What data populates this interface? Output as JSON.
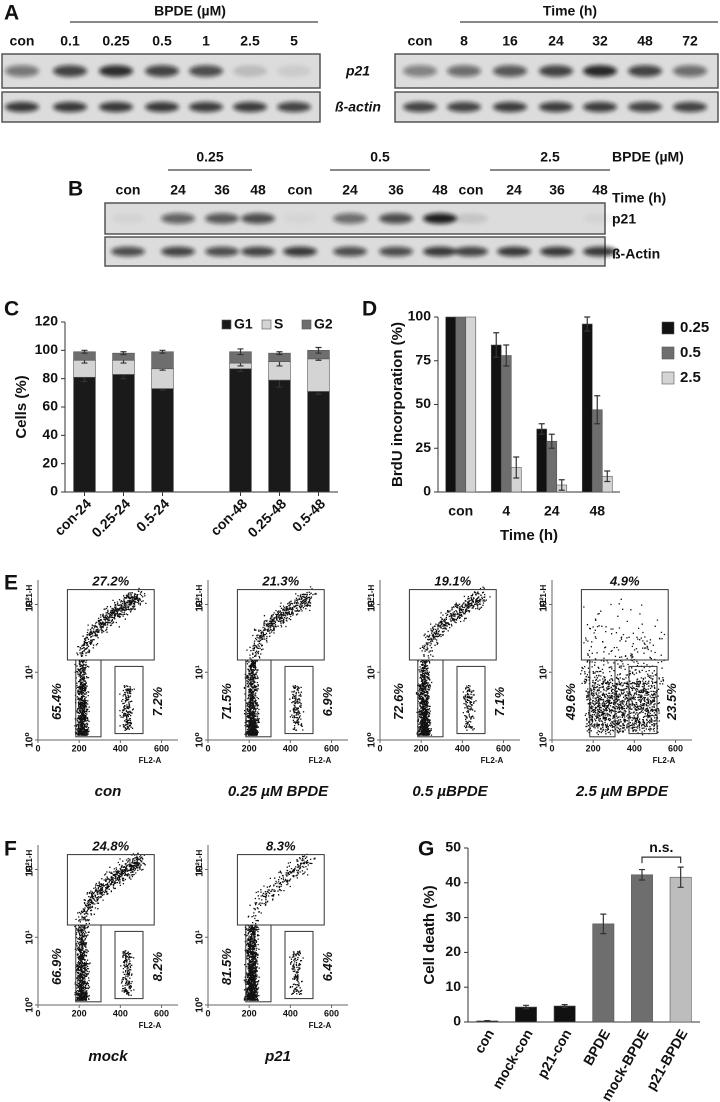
{
  "panel_labels": [
    "A",
    "B",
    "C",
    "D",
    "E",
    "F",
    "G"
  ],
  "blot_a": {
    "dose": {
      "header": "BPDE (µM)",
      "lanes": [
        "con",
        "0.1",
        "0.25",
        "0.5",
        "1",
        "2.5",
        "5"
      ]
    },
    "time": {
      "header": "Time (h)",
      "lanes": [
        "con",
        "8",
        "16",
        "24",
        "32",
        "48",
        "72"
      ]
    },
    "rows": [
      "p21",
      "ß-actin"
    ]
  },
  "blot_b": {
    "groups": [
      "0.25",
      "0.5",
      "2.5"
    ],
    "dose_label": "BPDE (µM)",
    "time_label": "Time (h)",
    "lanes": [
      "con",
      "24",
      "36",
      "48",
      "con",
      "24",
      "36",
      "48",
      "con",
      "24",
      "36",
      "48"
    ],
    "rows": [
      "p21",
      "ß-Actin"
    ]
  },
  "chart_data": [
    {
      "type": "stacked_bar",
      "ylabel": "Cells (%)",
      "categories": [
        "con-24",
        "0.25-24",
        "0.5-24",
        null,
        "con-48",
        "0.25-48",
        "0.5-48"
      ],
      "series": [
        {
          "name": "G1",
          "color": "#1a1a1a",
          "values": [
            81,
            83,
            73,
            null,
            87,
            79,
            71
          ],
          "errors": [
            3,
            3,
            1,
            null,
            2,
            5,
            2
          ]
        },
        {
          "name": "S",
          "color": "#d4d4d4",
          "values": [
            12,
            10,
            14,
            null,
            4,
            13,
            23
          ],
          "errors": [
            2,
            2,
            1,
            null,
            2,
            3,
            1
          ]
        },
        {
          "name": "G2",
          "color": "#6e6e6e",
          "values": [
            6,
            5,
            12,
            null,
            8,
            6,
            6
          ],
          "errors": [
            1,
            1,
            1,
            null,
            2,
            1,
            2
          ]
        }
      ],
      "ylim": [
        0,
        120
      ],
      "yticks": [
        0,
        20,
        40,
        60,
        80,
        100,
        120
      ],
      "legend": "top"
    },
    {
      "type": "grouped_bar",
      "xlabel": "Time (h)",
      "ylabel": "BrdU incorporation (%)",
      "categories": [
        "con",
        "4",
        "24",
        "48"
      ],
      "series": [
        {
          "name": "0.25",
          "color": "#111111",
          "values": [
            100,
            84,
            36,
            96
          ],
          "errors": [
            null,
            7,
            3,
            4
          ]
        },
        {
          "name": "0.5",
          "color": "#6e6e6e",
          "values": [
            100,
            78,
            29,
            47
          ],
          "errors": [
            null,
            6,
            4,
            8
          ]
        },
        {
          "name": "2.5",
          "color": "#d4d4d4",
          "values": [
            100,
            14,
            4,
            9
          ],
          "errors": [
            null,
            6,
            3,
            3
          ]
        }
      ],
      "ylim": [
        0,
        100
      ],
      "yticks": [
        0,
        25,
        50,
        75,
        100
      ],
      "legend": "right"
    },
    {
      "type": "bar",
      "ylabel": "Cell death (%)",
      "categories": [
        "con",
        "mock-con",
        "p21-con",
        "BPDE",
        "mock-BPDE",
        "p21-BPDE"
      ],
      "values": [
        0.3,
        4.3,
        4.6,
        28.2,
        42.3,
        41.6
      ],
      "errors": [
        0.1,
        0.5,
        0.4,
        2.8,
        1.5,
        2.9
      ],
      "colors": [
        "#111111",
        "#111111",
        "#111111",
        "#6e6e6e",
        "#6e6e6e",
        "#bdbdbd"
      ],
      "ylim": [
        0,
        50
      ],
      "yticks": [
        0,
        10,
        20,
        30,
        40,
        50
      ],
      "annotation": "n.s."
    }
  ],
  "flow": {
    "xlabel": "FL2-A",
    "ylabel": "FL1-H",
    "xlim": [
      0,
      680
    ],
    "xticks": [
      0,
      200,
      400,
      600
    ],
    "ylim": [
      1,
      230
    ],
    "log_y": true,
    "yticks": [
      {
        "value": 1,
        "label": "10⁰"
      },
      {
        "value": 10,
        "label": "10¹"
      },
      {
        "value": 100,
        "label": "10²"
      }
    ],
    "panel_e": [
      {
        "top": "27.2%",
        "left": "65.4%",
        "right": "7.2%",
        "caption": "con"
      },
      {
        "top": "21.3%",
        "left": "71.5%",
        "right": "6.9%",
        "caption": "0.25 µM BPDE"
      },
      {
        "top": "19.1%",
        "left": "72.6%",
        "right": "7.1%",
        "caption": "0.5 µBPDE"
      },
      {
        "top": "4.9%",
        "left": "49.6%",
        "right": "23.5%",
        "caption": "2.5 µM BPDE"
      }
    ],
    "panel_f": [
      {
        "top": "24.8%",
        "left": "66.9%",
        "right": "8.2%",
        "caption": "mock"
      },
      {
        "top": "8.3%",
        "left": "81.5%",
        "right": "6.4%",
        "caption": "p21"
      }
    ]
  }
}
